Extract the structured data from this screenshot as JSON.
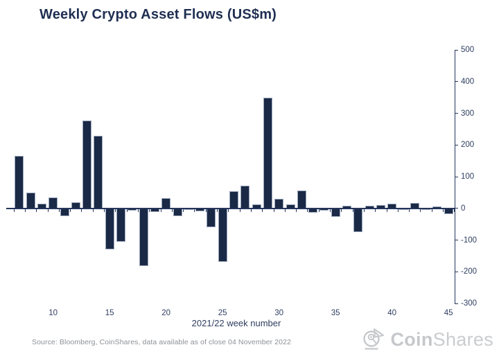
{
  "header": {
    "title": "Weekly Crypto Asset Flows (US$m)"
  },
  "footer": {
    "source": "Source: Bloomberg, CoinShares, data available as of close 04 November 2022",
    "logo": {
      "bold": "Coin",
      "light": "Shares"
    }
  },
  "chart_data": {
    "type": "bar",
    "title": "Weekly Crypto Asset Flows (US$m)",
    "xlabel": "2021/22 week number",
    "ylabel": "",
    "x": [
      7,
      8,
      9,
      10,
      11,
      12,
      13,
      14,
      15,
      16,
      17,
      18,
      19,
      20,
      21,
      22,
      23,
      24,
      25,
      26,
      27,
      28,
      29,
      30,
      31,
      32,
      33,
      34,
      35,
      36,
      37,
      38,
      39,
      40,
      41,
      42,
      43,
      44,
      45
    ],
    "values": [
      165,
      50,
      15,
      34,
      -25,
      19,
      276,
      230,
      -129,
      -105,
      -8,
      -181,
      -11,
      33,
      -24,
      -6,
      -9,
      -59,
      -169,
      55,
      72,
      12,
      350,
      29,
      13,
      56,
      -13,
      -7,
      -27,
      9,
      -75,
      8,
      10,
      15,
      -6,
      17,
      -4,
      7,
      -18
    ],
    "xticks": [
      10,
      15,
      20,
      25,
      30,
      35,
      40,
      45
    ],
    "yticks": [
      500,
      400,
      300,
      200,
      100,
      0,
      -100,
      -200,
      -300
    ],
    "ylim": [
      -300,
      500
    ],
    "xlim": [
      6.5,
      45.5
    ],
    "grid": false,
    "legend": "none",
    "bar_color": "#1a2945",
    "bar_border_color": "#9aa5ba",
    "axis_color": "#25355b",
    "label_color": "#2e3d60"
  }
}
